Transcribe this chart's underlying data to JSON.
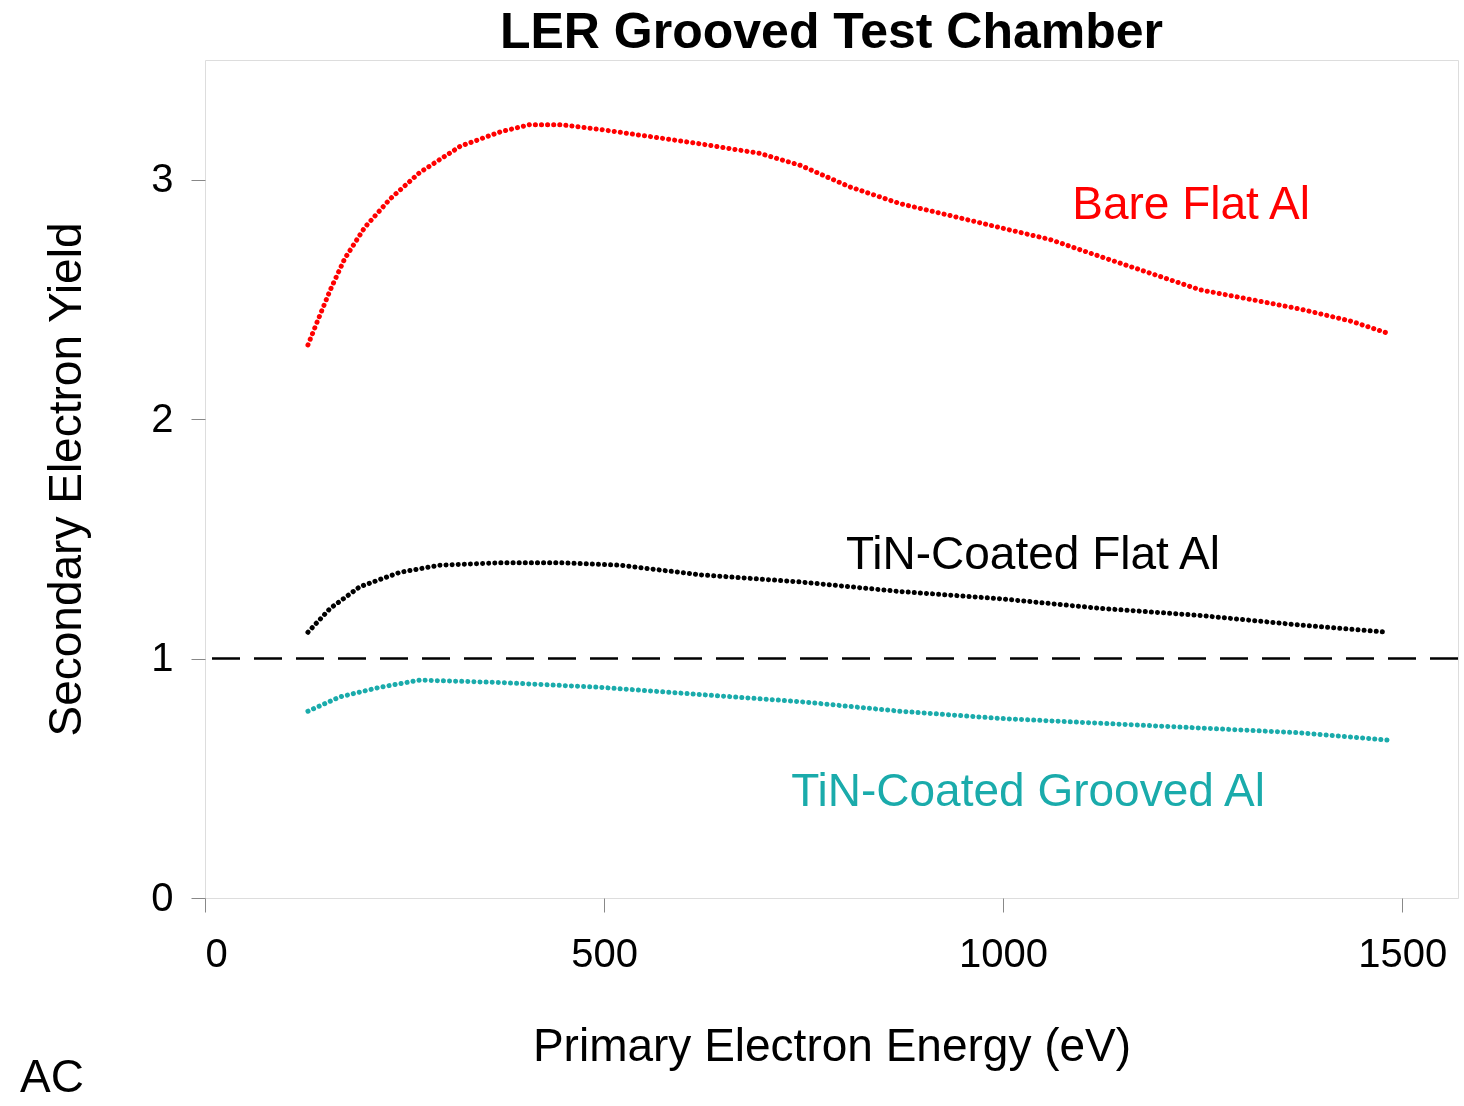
{
  "chart_data": {
    "type": "line",
    "title": "LER Grooved Test Chamber",
    "xlabel": "Primary Electron Energy  (eV)",
    "ylabel": "Secondary  Electron Yield",
    "xlim": [
      0,
      1570
    ],
    "xticks": [
      0,
      500,
      1000,
      1500
    ],
    "ylim": [
      0,
      3.5
    ],
    "yticks": [
      0,
      1,
      2,
      3
    ],
    "grid": false,
    "legend": false,
    "line_style": "dotted",
    "series": [
      {
        "name": "Bare Flat Al",
        "color": "#ff0000",
        "x": [
          129,
          141,
          157,
          175,
          200,
          232,
          269,
          320,
          370,
          407,
          445,
          495,
          558,
          620,
          695,
          746,
          808,
          871,
          934,
          996,
          1059,
          1121,
          1184,
          1247,
          1310,
          1372,
          1435,
          1481
        ],
        "values": [
          2.31,
          2.41,
          2.54,
          2.67,
          2.8,
          2.92,
          3.03,
          3.14,
          3.2,
          3.23,
          3.23,
          3.21,
          3.18,
          3.15,
          3.11,
          3.06,
          2.97,
          2.9,
          2.85,
          2.8,
          2.75,
          2.68,
          2.61,
          2.54,
          2.5,
          2.46,
          2.41,
          2.36
        ]
      },
      {
        "name": "TiN-Coated  Flat  Al",
        "color": "#000000",
        "x": [
          129,
          157,
          194,
          244,
          294,
          370,
          445,
          520,
          620,
          746,
          871,
          996,
          1121,
          1247,
          1372,
          1481
        ],
        "values": [
          1.11,
          1.21,
          1.3,
          1.36,
          1.39,
          1.4,
          1.4,
          1.39,
          1.35,
          1.32,
          1.28,
          1.25,
          1.21,
          1.18,
          1.14,
          1.11
        ]
      },
      {
        "name": "TiN-Coated  Grooved  Al",
        "color": "#1aabab",
        "x": [
          129,
          169,
          219,
          269,
          370,
          495,
          620,
          746,
          871,
          996,
          1121,
          1247,
          1372,
          1481
        ],
        "values": [
          0.78,
          0.84,
          0.88,
          0.91,
          0.9,
          0.88,
          0.85,
          0.82,
          0.78,
          0.75,
          0.73,
          0.71,
          0.69,
          0.66
        ]
      }
    ],
    "ref_lines": [
      {
        "axis": "y",
        "value": 1,
        "color": "#000000",
        "line_style": "dashed"
      }
    ],
    "annotations": [
      "AC"
    ]
  }
}
